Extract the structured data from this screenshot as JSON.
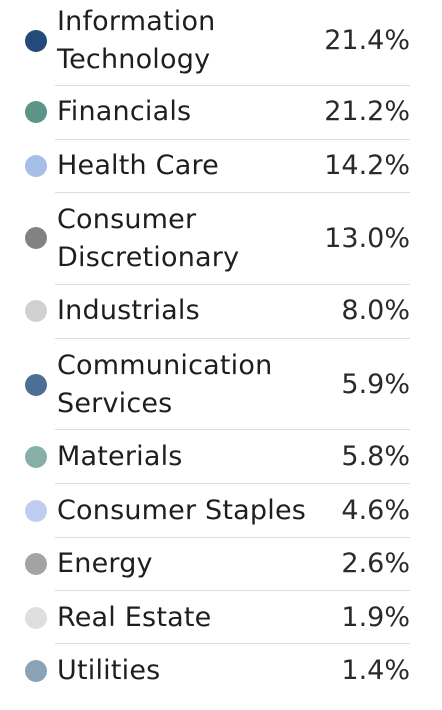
{
  "legend": {
    "items": [
      {
        "label": "Information\nTechnology",
        "value": "21.4%",
        "color": "#234a78"
      },
      {
        "label": "Financials",
        "value": "21.2%",
        "color": "#5d9488"
      },
      {
        "label": "Health Care",
        "value": "14.2%",
        "color": "#a6bde8"
      },
      {
        "label": "Consumer\nDiscretionary",
        "value": "13.0%",
        "color": "#828282"
      },
      {
        "label": "Industrials",
        "value": "8.0%",
        "color": "#d0d0d0"
      },
      {
        "label": "Communication\nServices",
        "value": "5.9%",
        "color": "#4d6f96"
      },
      {
        "label": "Materials",
        "value": "5.8%",
        "color": "#86b0a8"
      },
      {
        "label": "Consumer Staples",
        "value": "4.6%",
        "color": "#bfcdf0"
      },
      {
        "label": "Energy",
        "value": "2.6%",
        "color": "#a3a3a3"
      },
      {
        "label": "Real Estate",
        "value": "1.9%",
        "color": "#dedede"
      },
      {
        "label": "Utilities",
        "value": "1.4%",
        "color": "#8aa2b6"
      }
    ]
  }
}
